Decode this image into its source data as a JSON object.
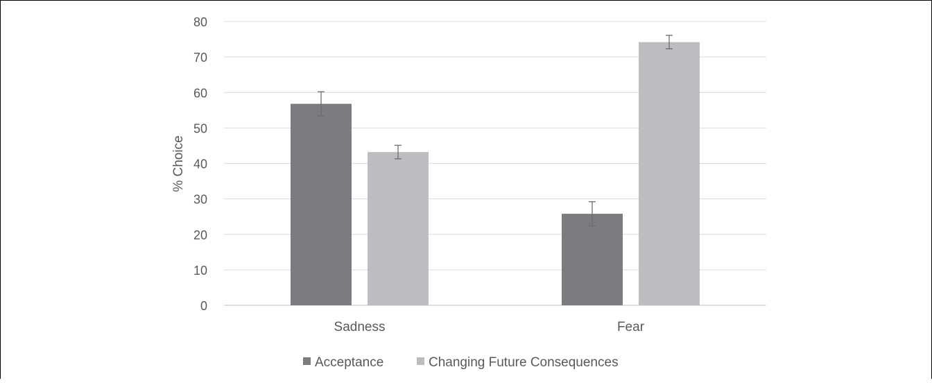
{
  "chart_data": {
    "type": "bar",
    "title": "",
    "xlabel": "",
    "ylabel": "% Choice",
    "categories": [
      "Sadness",
      "Fear"
    ],
    "series": [
      {
        "name": "Acceptance",
        "color": "#7b7c7f",
        "values": [
          56.8,
          25.8
        ],
        "error": [
          3.4,
          3.4
        ]
      },
      {
        "name": "Changing Future Consequences",
        "color": "#bcbdc0",
        "values": [
          43.2,
          74.2
        ],
        "error": [
          1.9,
          1.9
        ]
      }
    ],
    "ylim": [
      0,
      80
    ],
    "yticks": [
      0,
      10,
      20,
      30,
      40,
      50,
      60,
      70,
      80
    ],
    "grid": true,
    "legend_position": "bottom"
  }
}
